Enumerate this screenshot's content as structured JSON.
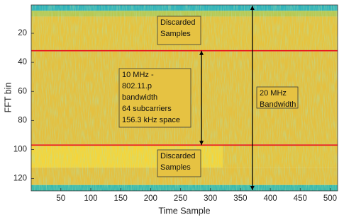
{
  "chart_data": {
    "type": "heatmap",
    "xlabel": "Time Sample",
    "ylabel": "FFT bin",
    "xlim": [
      0.5,
      512.5
    ],
    "ylim": [
      0.5,
      128.5
    ],
    "y_reversed": true,
    "xticks": [
      50,
      100,
      150,
      200,
      250,
      300,
      350,
      400,
      450,
      500
    ],
    "yticks": [
      20,
      40,
      60,
      80,
      100,
      120
    ],
    "x_edges": [
      0.5,
      320.5,
      512.5
    ],
    "y_edges": [
      0.5,
      4.5,
      8.5,
      32.5,
      96.5,
      112.5,
      124.5,
      128.5
    ],
    "z": [
      [
        0.3,
        0.3
      ],
      [
        0.6,
        0.6
      ],
      [
        0.82,
        0.82
      ],
      [
        0.8,
        0.8
      ],
      [
        0.95,
        0.82
      ],
      [
        0.8,
        0.8
      ],
      [
        0.35,
        0.35
      ]
    ],
    "colormap": [
      "#3c5bd6",
      "#1fa5d8",
      "#3fc0a0",
      "#b8c850",
      "#e4c040",
      "#fadc38"
    ],
    "hlines": [
      32,
      97
    ],
    "hline_color": "#e8141c",
    "arrows": [
      {
        "x": 370,
        "y": [
          1,
          128
        ]
      },
      {
        "x": 285,
        "y": [
          32,
          97
        ]
      }
    ],
    "annotations": [
      {
        "lines": [
          "Discarded",
          "Samples"
        ]
      },
      {
        "lines": [
          "10 MHz -",
          "802.11.p",
          "bandwidth",
          "64 subcarriers",
          "156.3 kHz space"
        ]
      },
      {
        "lines": [
          "20 MHz",
          "Bandwidth"
        ]
      },
      {
        "lines": [
          "Discarded",
          "Samples"
        ]
      }
    ]
  }
}
